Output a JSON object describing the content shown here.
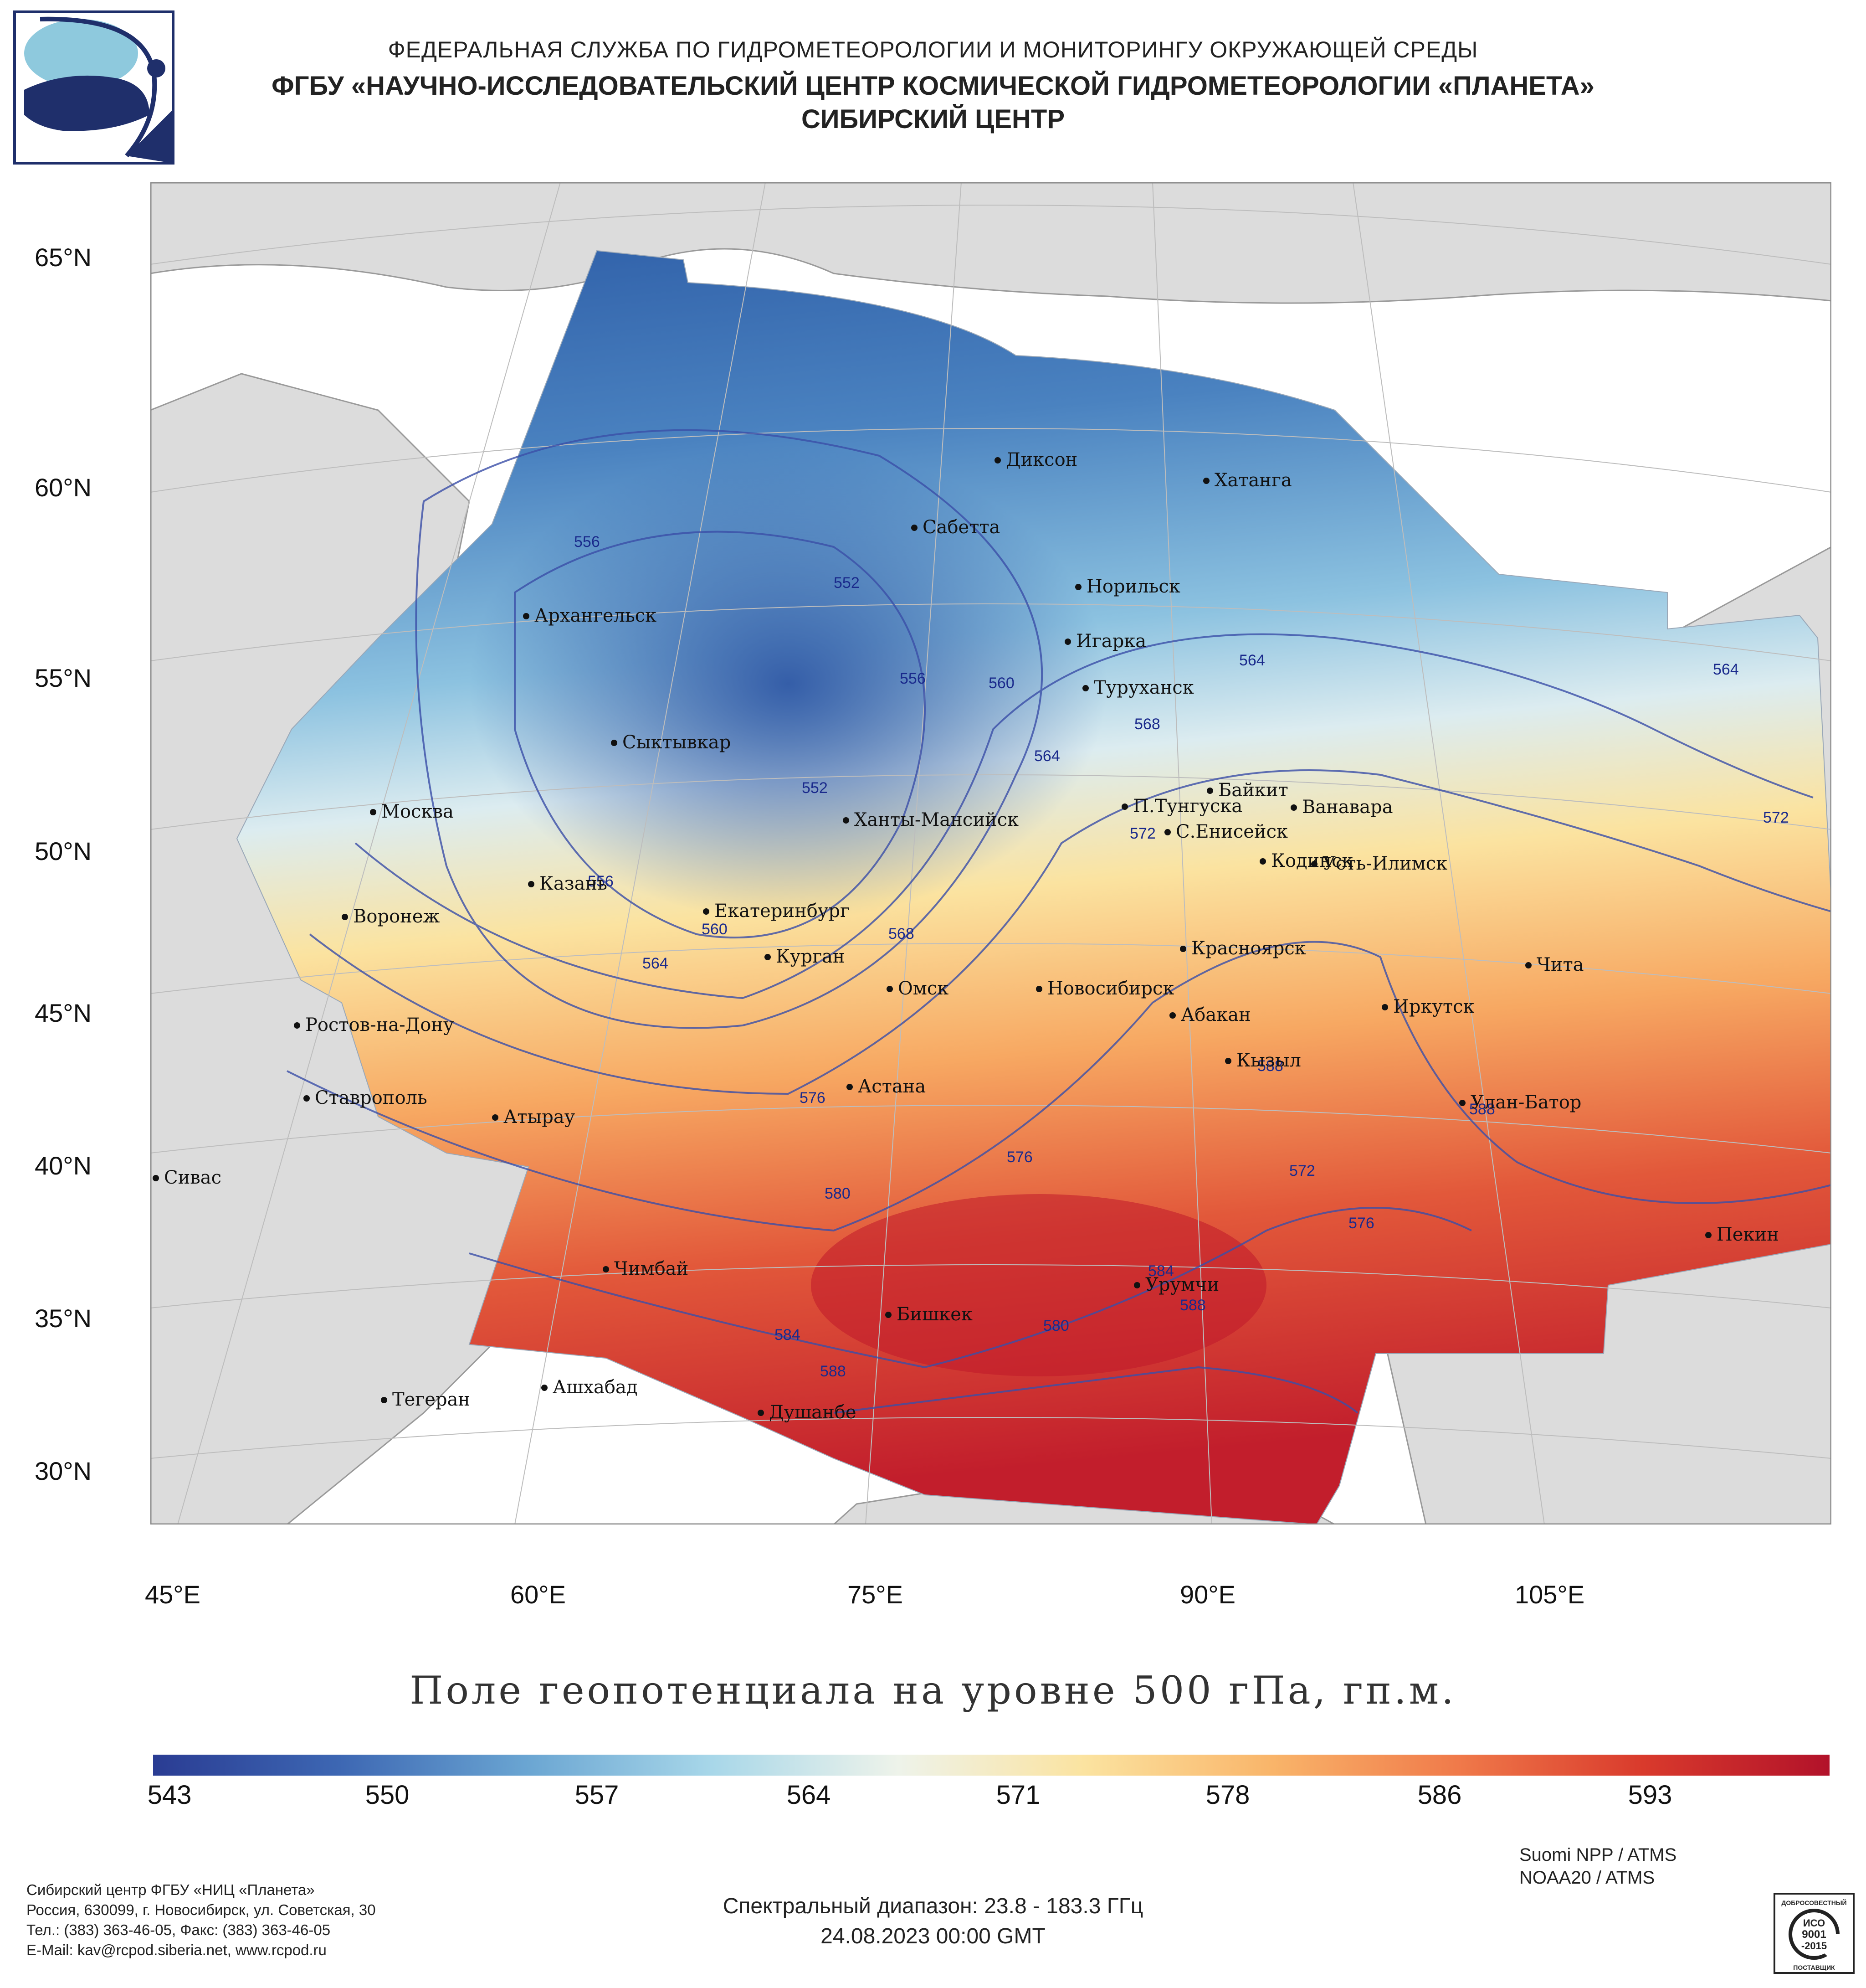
{
  "header": {
    "line1": "ФЕДЕРАЛЬНАЯ СЛУЖБА ПО ГИДРОМЕТЕОРОЛОГИИ И МОНИТОРИНГУ ОКРУЖАЮЩЕЙ СРЕДЫ",
    "line2": "ФГБУ «НАУЧНО-ИССЛЕДОВАТЕЛЬСКИЙ ЦЕНТР КОСМИЧЕСКОЙ ГИДРОМЕТЕОРОЛОГИИ «ПЛАНЕТА»",
    "line3": "СИБИРСКИЙ ЦЕНТР"
  },
  "logo": {
    "icon": "planeta-logo-icon",
    "colors": {
      "navy": "#1f2f6b",
      "light": "#8ec9dd"
    }
  },
  "map": {
    "lat_labels": [
      "65°N",
      "60°N",
      "55°N",
      "50°N",
      "45°N",
      "40°N",
      "35°N",
      "30°N"
    ],
    "lon_labels": [
      "45°E",
      "60°E",
      "75°E",
      "90°E",
      "105°E"
    ],
    "cities": [
      {
        "name": "Диксон"
      },
      {
        "name": "Хатанга"
      },
      {
        "name": "Сабетта"
      },
      {
        "name": "Норильск"
      },
      {
        "name": "Архангельск"
      },
      {
        "name": "Игарка"
      },
      {
        "name": "Туруханск"
      },
      {
        "name": "Сыктывкар"
      },
      {
        "name": "Байкит"
      },
      {
        "name": "П.Тунгуска"
      },
      {
        "name": "Ванавара"
      },
      {
        "name": "Москва"
      },
      {
        "name": "Ханты-Мансийск"
      },
      {
        "name": "С.Енисейск"
      },
      {
        "name": "Кодинск"
      },
      {
        "name": "Усть-Илимск"
      },
      {
        "name": "Казань"
      },
      {
        "name": "Воронеж"
      },
      {
        "name": "Екатеринбург"
      },
      {
        "name": "Красноярск"
      },
      {
        "name": "Чита"
      },
      {
        "name": "Курган"
      },
      {
        "name": "Омск"
      },
      {
        "name": "Новосибирск"
      },
      {
        "name": "Иркутск"
      },
      {
        "name": "Абакан"
      },
      {
        "name": "Ростов-на-Дону"
      },
      {
        "name": "Кызыл"
      },
      {
        "name": "Ставрополь"
      },
      {
        "name": "Астана"
      },
      {
        "name": "Улан-Батор"
      },
      {
        "name": "Атырау"
      },
      {
        "name": "Сивас"
      },
      {
        "name": "Пекин"
      },
      {
        "name": "Чимбай"
      },
      {
        "name": "Урумчи"
      },
      {
        "name": "Бишкек"
      },
      {
        "name": "Ашхабад"
      },
      {
        "name": "Тегеран"
      },
      {
        "name": "Душанбе"
      }
    ],
    "contour_labels": [
      "556",
      "552",
      "556",
      "560",
      "564",
      "568",
      "564",
      "552",
      "572",
      "556",
      "560",
      "564",
      "568",
      "564",
      "572",
      "576",
      "576",
      "580",
      "584",
      "588",
      "588",
      "580",
      "584",
      "588",
      "572",
      "576",
      "588"
    ],
    "colors": {
      "land": "#dcdcdc",
      "ocean": "#ffffff",
      "border": "#9a9a9a",
      "grid": "#bdbdbd",
      "contour": "#3b4fa8"
    }
  },
  "legend": {
    "title": "Поле геопотенциала на уровне 500 гПа, гп.м.",
    "tick_labels": [
      "543",
      "550",
      "557",
      "564",
      "571",
      "578",
      "586",
      "593"
    ],
    "stops": [
      "#2a3c93",
      "#3d67b3",
      "#6aa5d2",
      "#a8d7e9",
      "#eef3ea",
      "#fbe3a0",
      "#f9b56a",
      "#f07a4a",
      "#d93a2c",
      "#b2122a"
    ]
  },
  "footer": {
    "contact_lines": [
      "Сибирский центр ФГБУ «НИЦ «Планета»",
      "Россия, 630099, г. Новосибирск, ул. Советская, 30",
      "Тел.: (383) 363-46-05, Факс: (383) 363-46-05",
      "E-Mail: kav@rcpod.siberia.net, www.rcpod.ru"
    ],
    "satellites": [
      "Suomi NPP / ATMS",
      "NOAA20 / ATMS"
    ],
    "spectral": "Спектральный диапазон: 23.8 - 183.3 ГГц",
    "datetime": "24.08.2023 00:00 GMT",
    "iso_badge": {
      "top": "ДОБРОСОВЕСТНЫЙ",
      "l1": "ИСО",
      "l2": "9001",
      "l3": "-2015",
      "bottom": "ПОСТАВЩИК",
      "icon": "iso-badge-icon"
    }
  }
}
